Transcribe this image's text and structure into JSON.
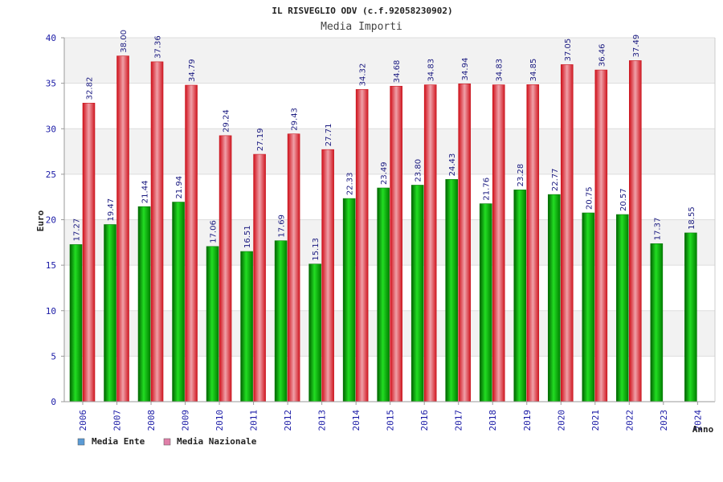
{
  "chart_data": {
    "type": "bar",
    "title": "IL RISVEGLIO ODV (c.f.92058230902)",
    "subtitle": "Media Importi",
    "ylabel": "Euro",
    "xlabel": "Anno",
    "ylim": [
      0,
      40
    ],
    "yticks": [
      "0",
      "5",
      "10",
      "15",
      "20",
      "25",
      "30",
      "35",
      "40"
    ],
    "categories": [
      "2006",
      "2007",
      "2008",
      "2009",
      "2010",
      "2011",
      "2012",
      "2013",
      "2014",
      "2015",
      "2016",
      "2017",
      "2018",
      "2019",
      "2020",
      "2021",
      "2022",
      "2023",
      "2024"
    ],
    "series": [
      {
        "name": "Media Ente",
        "color": "#00aa00",
        "legend_color": "#5b9bd5",
        "values": [
          17.27,
          19.47,
          21.44,
          21.94,
          17.06,
          16.51,
          17.69,
          15.13,
          22.33,
          23.49,
          23.8,
          24.43,
          21.76,
          23.28,
          22.77,
          20.75,
          20.57,
          17.37,
          18.55
        ],
        "labels": [
          "17.27",
          "19.47",
          "21.44",
          "21.94",
          "17.06",
          "16.51",
          "17.69",
          "15.13",
          "22.33",
          "23.49",
          "23.80",
          "24.43",
          "21.76",
          "23.28",
          "22.77",
          "20.75",
          "20.57",
          "17.37",
          "18.55"
        ]
      },
      {
        "name": "Media Nazionale",
        "color": "#e8202a",
        "legend_color": "#e07fa8",
        "values": [
          32.82,
          38.0,
          37.36,
          34.79,
          29.24,
          27.19,
          29.43,
          27.71,
          34.32,
          34.68,
          34.83,
          34.94,
          34.83,
          34.85,
          37.05,
          36.46,
          37.49,
          null,
          null
        ],
        "labels": [
          "32.82",
          "38.00",
          "37.36",
          "34.79",
          "29.24",
          "27.19",
          "29.43",
          "27.71",
          "34.32",
          "34.68",
          "34.83",
          "34.94",
          "34.83",
          "34.85",
          "37.05",
          "36.46",
          "37.49",
          null,
          null
        ]
      }
    ],
    "legend": "bottom-left",
    "grid": true
  }
}
